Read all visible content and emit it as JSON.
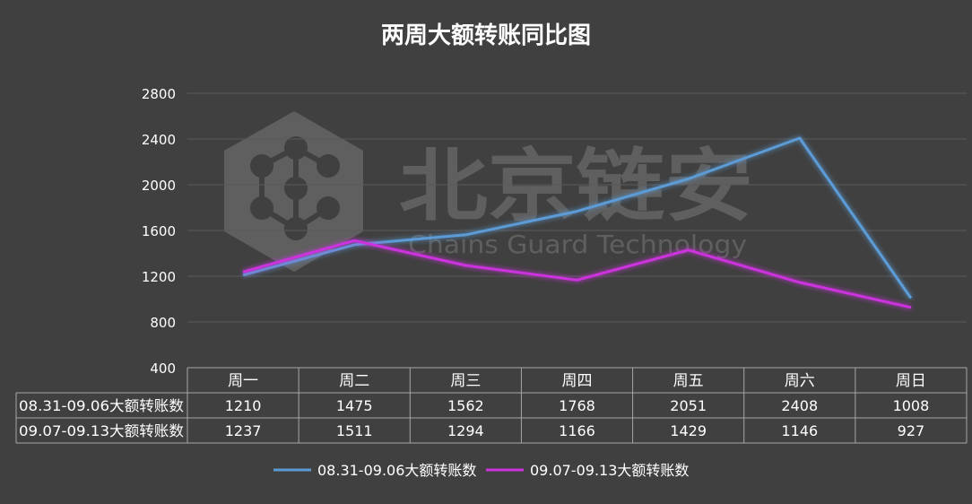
{
  "chart_data": {
    "type": "line",
    "title": "两周大额转账同比图",
    "categories": [
      "周一",
      "周二",
      "周三",
      "周四",
      "周五",
      "周六",
      "周日"
    ],
    "ylim": [
      400,
      2800
    ],
    "yticks": [
      400,
      800,
      1200,
      1600,
      2000,
      2400,
      2800
    ],
    "grid": true,
    "legend": "bottom",
    "series": [
      {
        "name": "08.31-09.06大额转账数",
        "color": "#5b9bd5",
        "values": [
          1210,
          1475,
          1562,
          1768,
          2051,
          2408,
          1008
        ]
      },
      {
        "name": "09.07-09.13大额转账数",
        "color": "#cc33dd",
        "values": [
          1237,
          1511,
          1294,
          1166,
          1429,
          1146,
          927
        ]
      }
    ]
  },
  "watermark": {
    "text_cn": "北京链安",
    "text_en": "Chains Guard Technology"
  }
}
